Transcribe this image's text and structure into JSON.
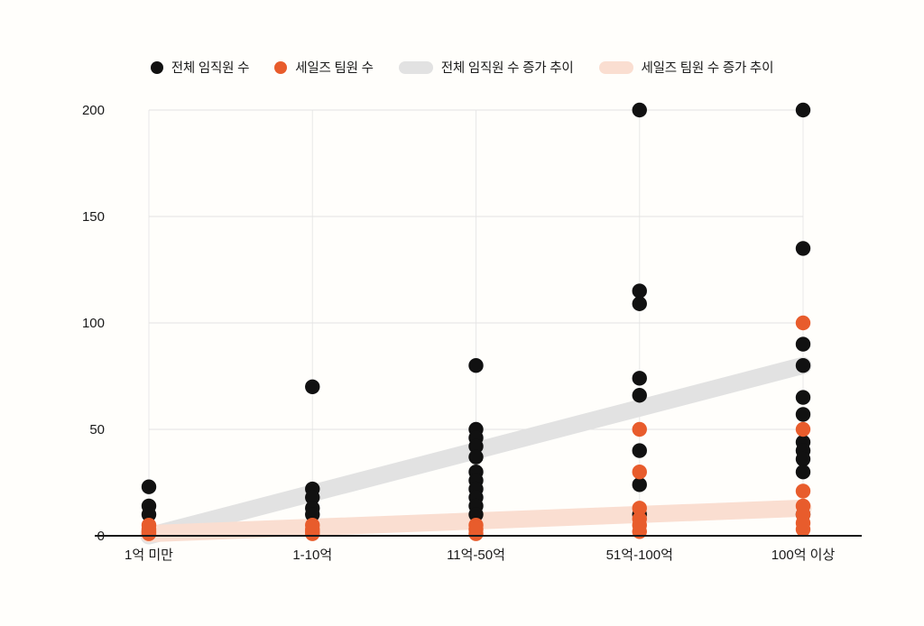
{
  "legend": {
    "items": [
      {
        "label": "전체 임직원 수",
        "marker": "dot",
        "color": "#111111"
      },
      {
        "label": "세일즈 팀원 수",
        "marker": "dot",
        "color": "#e85c2c"
      },
      {
        "label": "전체 임직원 수 증가 추이",
        "marker": "pill",
        "color": "#e2e2e2"
      },
      {
        "label": "세일즈 팀원 수 증가 추이",
        "marker": "pill",
        "color": "#fadED1"
      }
    ]
  },
  "chart_data": {
    "type": "scatter",
    "title": "",
    "xlabel": "",
    "ylabel": "",
    "categories": [
      "1억 미만",
      "1-10억",
      "11억-50억",
      "51억-100억",
      "100억 이상"
    ],
    "ylim": [
      0,
      200
    ],
    "yticks": [
      0,
      50,
      100,
      150,
      200
    ],
    "grid": true,
    "legend_position": "top",
    "series": [
      {
        "name": "전체 임직원 수",
        "type": "scatter",
        "color": "#111111",
        "points_by_category": [
          [
            23,
            14,
            10
          ],
          [
            70,
            22,
            18,
            13,
            10
          ],
          [
            80,
            50,
            46,
            42,
            37,
            30,
            26,
            22,
            18,
            14,
            10
          ],
          [
            200,
            115,
            109,
            74,
            66,
            40,
            24,
            10
          ],
          [
            200,
            135,
            90,
            80,
            65,
            57,
            44,
            40,
            36,
            30,
            10
          ]
        ]
      },
      {
        "name": "세일즈 팀원 수",
        "type": "scatter",
        "color": "#e85c2c",
        "points_by_category": [
          [
            5,
            3,
            2,
            1
          ],
          [
            5,
            3,
            2,
            1
          ],
          [
            5,
            3,
            1
          ],
          [
            50,
            30,
            13,
            8,
            5,
            2
          ],
          [
            100,
            50,
            21,
            14,
            10,
            6,
            3
          ]
        ]
      },
      {
        "name": "전체 임직원 수 증가 추이",
        "type": "trend_band",
        "color": "#e2e2e2",
        "start_value": 0,
        "end_value": 80
      },
      {
        "name": "세일즈 팀원 수 증가 추이",
        "type": "trend_band",
        "color": "#fadED1",
        "start_value": 1,
        "end_value": 13
      }
    ],
    "axis_color": "#1a1a1a",
    "gridline_color": "#e3e3e3",
    "tick_label_color": "#1a1a1a"
  }
}
